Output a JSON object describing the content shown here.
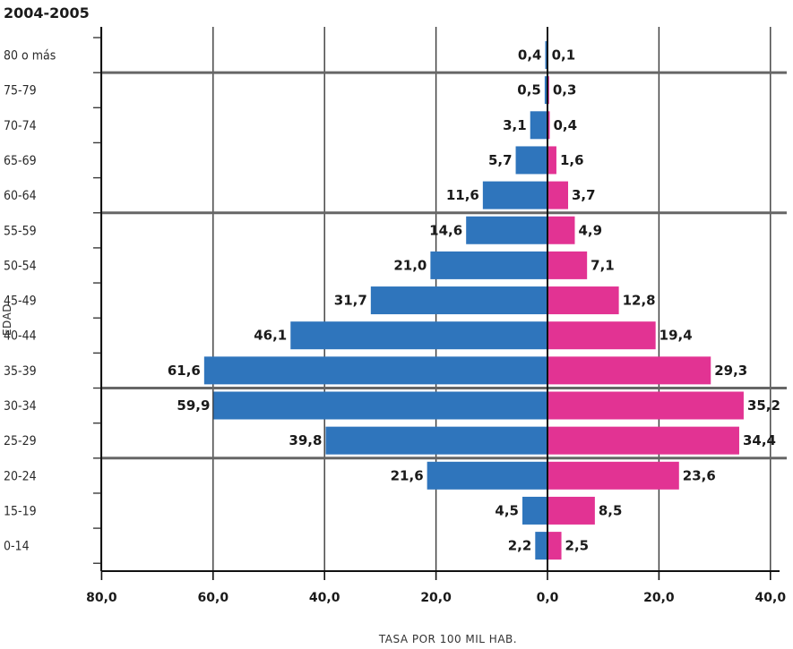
{
  "chart_data": {
    "type": "bar",
    "orientation": "horizontal-diverging",
    "title": "2004-2005",
    "xlabel": "TASA POR 100 MIL HAB.",
    "ylabel": "EDAD",
    "categories": [
      "80 o más",
      "75-79",
      "70-74",
      "65-69",
      "60-64",
      "55-59",
      "50-54",
      "45-49",
      "40-44",
      "35-39",
      "30-34",
      "25-29",
      "20-24",
      "15-19",
      "0-14"
    ],
    "series": [
      {
        "side": "left",
        "color": "#2f75bc",
        "values": [
          0.4,
          0.5,
          3.1,
          5.7,
          11.6,
          14.6,
          21.0,
          31.7,
          46.1,
          61.6,
          59.9,
          39.8,
          21.6,
          4.5,
          2.2
        ],
        "labels": [
          "0,4",
          "0,5",
          "3,1",
          "5,7",
          "11,6",
          "14,6",
          "21,0",
          "31,7",
          "46,1",
          "61,6",
          "59,9",
          "39,8",
          "21,6",
          "4,5",
          "2,2"
        ]
      },
      {
        "side": "right",
        "color": "#e23393",
        "values": [
          0.1,
          0.3,
          0.4,
          1.6,
          3.7,
          4.9,
          7.1,
          12.8,
          19.4,
          29.3,
          35.2,
          34.4,
          23.6,
          8.5,
          2.5
        ],
        "labels": [
          "0,1",
          "0,3",
          "0,4",
          "1,6",
          "3,7",
          "4,9",
          "7,1",
          "12,8",
          "19,4",
          "29,3",
          "35,2",
          "34,4",
          "23,6",
          "8,5",
          "2,5"
        ]
      }
    ],
    "xlim": [
      -80,
      40
    ],
    "xticks": [
      -80,
      -60,
      -40,
      -20,
      0,
      20,
      40
    ],
    "xtick_labels": [
      "80,0",
      "60,0",
      "40,0",
      "20,0",
      "0,0",
      "20,0",
      "40,0"
    ],
    "group_dividers_after": [
      "80 o más",
      "60-64",
      "35-39",
      "25-29"
    ],
    "grid": true
  }
}
